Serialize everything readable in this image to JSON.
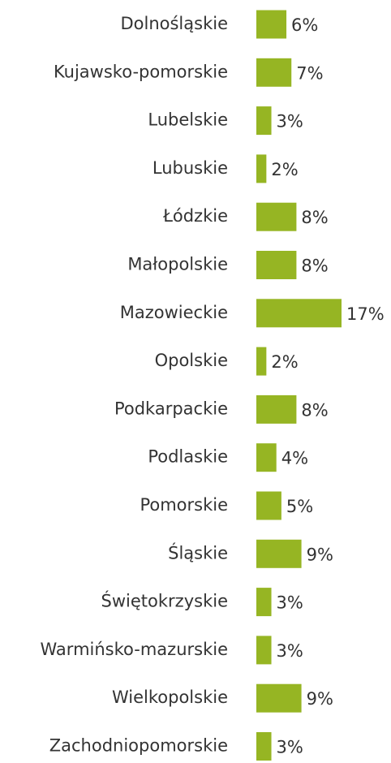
{
  "chart_data": {
    "type": "bar",
    "orientation": "horizontal",
    "color": "#96b523",
    "categories": [
      "Dolnośląskie",
      "Kujawsko-pomorskie",
      "Lubelskie",
      "Lubuskie",
      "Łódzkie",
      "Małopolskie",
      "Mazowieckie",
      "Opolskie",
      "Podkarpackie",
      "Podlaskie",
      "Pomorskie",
      "Śląskie",
      "Świętokrzyskie",
      "Warmińsko-mazurskie",
      "Wielkopolskie",
      "Zachodniopomorskie"
    ],
    "values": [
      6,
      7,
      3,
      2,
      8,
      8,
      17,
      2,
      8,
      4,
      5,
      9,
      3,
      3,
      9,
      3
    ],
    "value_labels": [
      "6%",
      "7%",
      "3%",
      "2%",
      "8%",
      "8%",
      "17%",
      "2%",
      "8%",
      "4%",
      "5%",
      "9%",
      "3%",
      "3%",
      "9%",
      "3%"
    ]
  }
}
